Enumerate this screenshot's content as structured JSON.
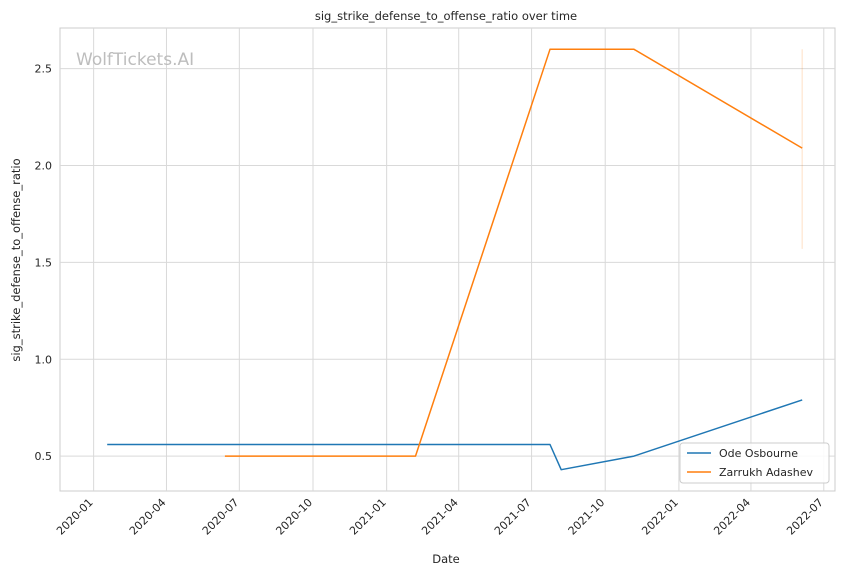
{
  "chart_data": {
    "type": "line",
    "title": "sig_strike_defense_to_offense_ratio over time",
    "xlabel": "Date",
    "ylabel": "sig_strike_defense_to_offense_ratio",
    "watermark": "WolfTickets.AI",
    "x_type": "date",
    "xlim": [
      "2019-11-20",
      "2022-07-15"
    ],
    "ylim": [
      0.32,
      2.71
    ],
    "x_ticks": [
      "2020-01-01",
      "2020-04-01",
      "2020-07-01",
      "2020-10-01",
      "2021-01-01",
      "2021-04-01",
      "2021-07-01",
      "2021-10-01",
      "2022-01-01",
      "2022-04-01",
      "2022-07-01"
    ],
    "x_tick_labels": [
      "2020-01",
      "2020-04",
      "2020-07",
      "2020-10",
      "2021-01",
      "2021-04",
      "2021-07",
      "2021-10",
      "2022-01",
      "2022-04",
      "2022-07"
    ],
    "y_ticks": [
      0.5,
      1.0,
      1.5,
      2.0,
      2.5
    ],
    "y_tick_labels": [
      "0.5",
      "1.0",
      "1.5",
      "2.0",
      "2.5"
    ],
    "grid": true,
    "legend_position": "lower-right",
    "series": [
      {
        "name": "Ode Osbourne",
        "color": "#1f77b4",
        "points": [
          {
            "x": "2020-01-18",
            "y": 0.56
          },
          {
            "x": "2021-07-24",
            "y": 0.56
          },
          {
            "x": "2021-08-07",
            "y": 0.43
          },
          {
            "x": "2021-11-06",
            "y": 0.5
          },
          {
            "x": "2022-06-04",
            "y": 0.79
          }
        ]
      },
      {
        "name": "Zarrukh Adashev",
        "color": "#ff7f0e",
        "points": [
          {
            "x": "2020-06-13",
            "y": 0.5
          },
          {
            "x": "2021-02-06",
            "y": 0.5
          },
          {
            "x": "2021-07-24",
            "y": 2.6
          },
          {
            "x": "2021-11-06",
            "y": 2.6
          },
          {
            "x": "2022-06-04",
            "y": 2.09
          }
        ]
      }
    ],
    "annotations": [
      {
        "type": "vertical-line",
        "x": "2022-06-04",
        "y_range": [
          1.57,
          2.6
        ],
        "color": "#ff7f0e",
        "opacity": 0.2
      }
    ]
  }
}
